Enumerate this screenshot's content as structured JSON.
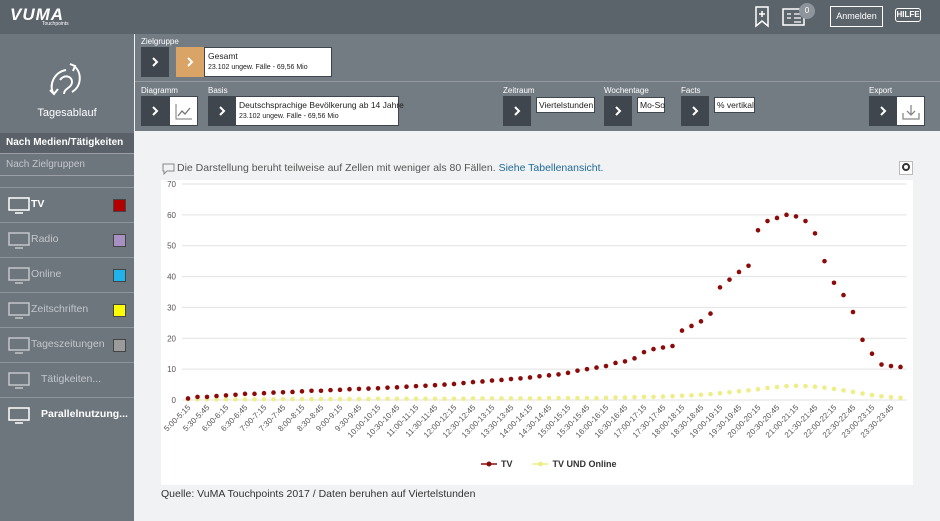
{
  "header": {
    "logo": "VUMA",
    "logo_sub": "Touchpoints",
    "badge": "0",
    "login": "Anmelden",
    "help": "HILFE"
  },
  "sidebar": {
    "title": "Tagesablauf",
    "tabs": [
      "Nach Medien/Tätigkeiten",
      "Nach Zielgruppen"
    ],
    "items": [
      {
        "label": "TV",
        "color": "#b30000",
        "active": true
      },
      {
        "label": "Radio",
        "color": "#a791c2",
        "active": false
      },
      {
        "label": "Online",
        "color": "#1eb3ea",
        "active": false
      },
      {
        "label": "Zeitschriften",
        "color": "#ffff00",
        "active": false
      },
      {
        "label": "Tageszeitungen",
        "color": "#9b9b9b",
        "active": false
      },
      {
        "label": "Tätigkeiten...",
        "active": false
      },
      {
        "label": "Parallelnutzung...",
        "active": true
      }
    ]
  },
  "controls": {
    "zielgruppe": {
      "label": "Zielgruppe",
      "value": "Gesamt",
      "sub": "23.102 ungew. Fälle - 69,56 Mio"
    },
    "diagramm": {
      "label": "Diagramm"
    },
    "basis": {
      "label": "Basis",
      "value": "Deutschsprachige Bevölkerung ab 14 Jahre",
      "sub": "23.102 ungew. Fälle - 69,56 Mio"
    },
    "zeitraum": {
      "label": "Zeitraum",
      "value": "Viertelstunden"
    },
    "wochentage": {
      "label": "Wochentage",
      "value": "Mo-So"
    },
    "facts": {
      "label": "Facts",
      "value": "% vertikal"
    },
    "export": {
      "label": "Export"
    }
  },
  "notice": {
    "text": "Die Darstellung beruht teilweise auf Zellen mit weniger als 80 Fällen.",
    "link": "Siehe Tabellenansicht."
  },
  "chart_data": {
    "type": "line",
    "grid": true,
    "legend": "bottom",
    "categories": [
      "5:00-5:15",
      null,
      "5:30-5:45",
      null,
      "6:00-6:15",
      null,
      "6:30-6:45",
      null,
      "7:00-7:15",
      null,
      "7:30-7:45",
      null,
      "8:00-8:15",
      null,
      "8:30-8:45",
      null,
      "9:00-9:15",
      null,
      "9:30-9:45",
      null,
      "10:00-10:15",
      null,
      "10:30-10:45",
      null,
      "11:00-11:15",
      null,
      "11:30-11:45",
      null,
      "12:00-12:15",
      null,
      "12:30-12:45",
      null,
      "13:00-13:15",
      null,
      "13:30-13:45",
      null,
      "14:00-14:15",
      null,
      "14:30-14:45",
      null,
      "15:00-15:15",
      null,
      "15:30-15:45",
      null,
      "16:00-16:15",
      null,
      "16:30-16:45",
      null,
      "17:00-17:15",
      null,
      "17:30-17:45",
      null,
      "18:00-18:15",
      null,
      "18:30-18:45",
      null,
      "19:00-19:15",
      null,
      "19:30-19:45",
      null,
      "20:00-20:15",
      null,
      "20:30-20:45",
      null,
      "21:00-21:15",
      null,
      "21:30-21:45",
      null,
      "22:00-22:15",
      null,
      "22:30-22:45",
      null,
      "23:00-23:15",
      null,
      "23:30-23:45",
      null
    ],
    "series": [
      {
        "name": "TV",
        "color": "#8b0a0a",
        "values": [
          0.5,
          1,
          1,
          1.3,
          1.5,
          1.7,
          2,
          2,
          2.2,
          2.4,
          2.5,
          2.6,
          2.8,
          3,
          3,
          3.2,
          3.3,
          3.5,
          3.6,
          3.7,
          3.8,
          4,
          4.1,
          4.3,
          4.5,
          4.6,
          4.8,
          5,
          5.2,
          5.5,
          5.8,
          6,
          6.3,
          6.5,
          6.8,
          7,
          7.3,
          7.7,
          8,
          8.3,
          8.8,
          9.5,
          10,
          10.5,
          11,
          12,
          12.5,
          13.5,
          15.5,
          16.5,
          17,
          17.5,
          22.5,
          24,
          25.5,
          28,
          36.5,
          39,
          41.5,
          43.5,
          55,
          58,
          59,
          60,
          59.5,
          58,
          54,
          45,
          38,
          34,
          28.5,
          19.5,
          15,
          11.5,
          11,
          10.7
        ]
      },
      {
        "name": "TV UND Online",
        "color": "#eeee88",
        "values": [
          0.2,
          0.2,
          0.2,
          0.2,
          0.2,
          0.2,
          0.2,
          0.2,
          0.2,
          0.2,
          0.3,
          0.3,
          0.3,
          0.3,
          0.3,
          0.3,
          0.3,
          0.3,
          0.3,
          0.3,
          0.4,
          0.4,
          0.4,
          0.4,
          0.4,
          0.4,
          0.4,
          0.4,
          0.4,
          0.4,
          0.5,
          0.5,
          0.5,
          0.5,
          0.5,
          0.5,
          0.5,
          0.5,
          0.6,
          0.6,
          0.6,
          0.6,
          0.6,
          0.6,
          0.7,
          0.8,
          0.8,
          0.9,
          1,
          1,
          1.1,
          1.2,
          1.4,
          1.5,
          1.7,
          1.9,
          2.2,
          2.5,
          2.8,
          3.1,
          3.5,
          3.9,
          4.2,
          4.5,
          4.6,
          4.5,
          4.3,
          4,
          3.6,
          3.1,
          2.6,
          2.1,
          1.6,
          1.2,
          0.9,
          0.7
        ]
      }
    ],
    "ylim": [
      0,
      70
    ],
    "yticks": [
      0,
      10,
      20,
      30,
      40,
      50,
      60,
      70
    ]
  },
  "source": "Quelle: VuMA Touchpoints 2017 / Daten beruhen auf Viertelstunden"
}
